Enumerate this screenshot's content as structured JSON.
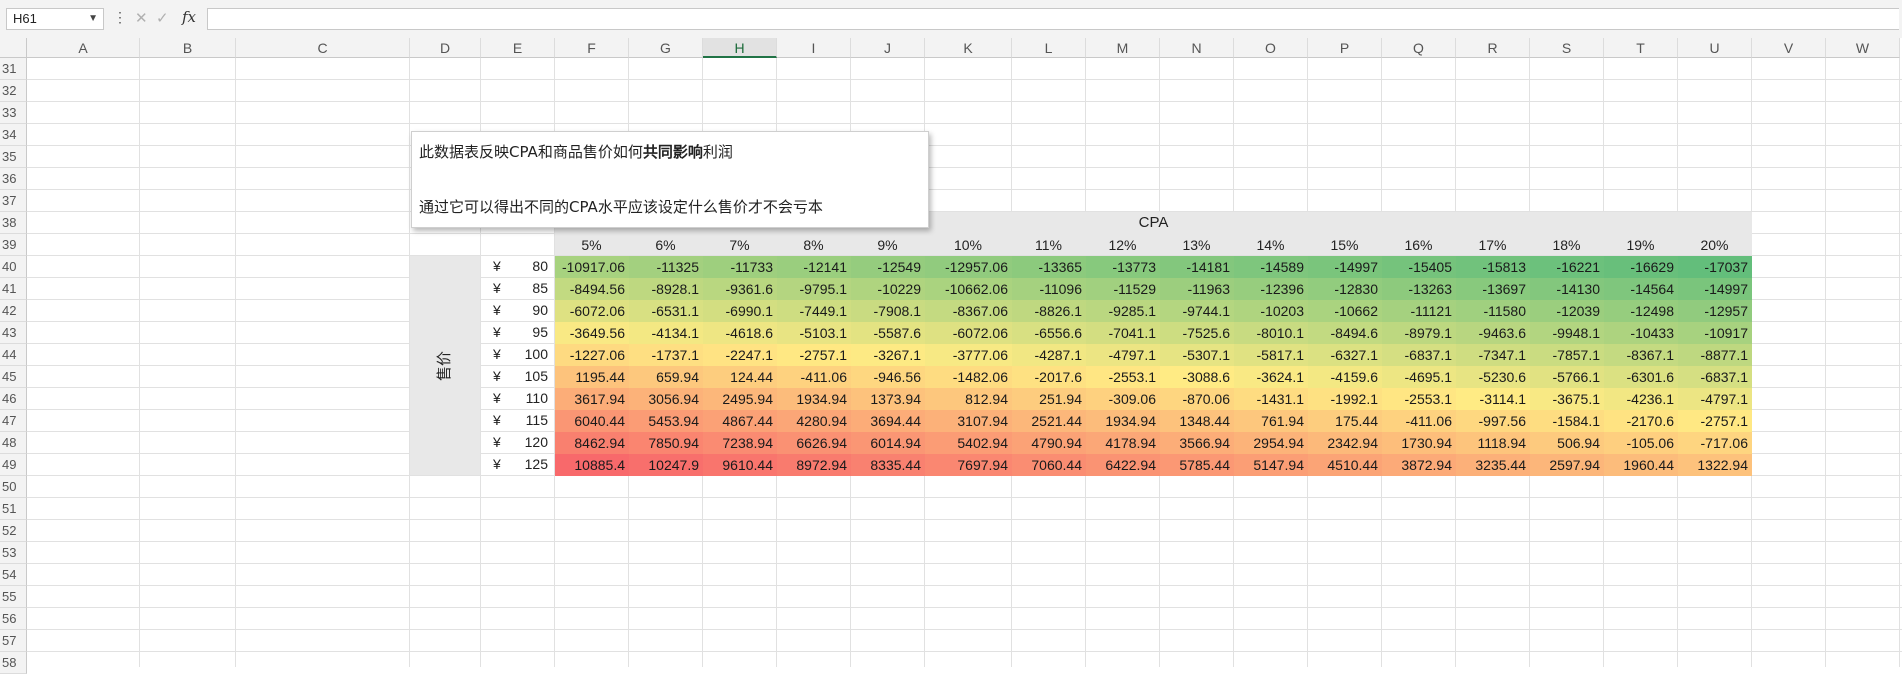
{
  "formula_bar": {
    "name_box": "H61",
    "dots_label": "⋮",
    "cancel_icon": "close-icon",
    "enter_icon": "check-icon",
    "fx_label": "fx",
    "formula_value": ""
  },
  "columns": [
    "A",
    "B",
    "C",
    "D",
    "E",
    "F",
    "G",
    "H",
    "I",
    "J",
    "K",
    "L",
    "M",
    "N",
    "O",
    "P",
    "Q",
    "R",
    "S",
    "T",
    "U",
    "V",
    "W"
  ],
  "selected_column": "H",
  "rows": [
    "31",
    "32",
    "33",
    "34",
    "35",
    "36",
    "37",
    "38",
    "39",
    "40",
    "41",
    "42",
    "43",
    "44",
    "45",
    "46",
    "47",
    "48",
    "49",
    "50",
    "51",
    "52",
    "53",
    "54",
    "55",
    "56",
    "57",
    "58"
  ],
  "note": {
    "line1_pre": "此数据表反映CPA和商品售价如何",
    "line1_bold": "共同影响",
    "line1_post": "利润",
    "line2": "通过它可以得出不同的CPA水平应该设定什么售价才不会亏本"
  },
  "table": {
    "cpa_label": "CPA",
    "price_label": "售价",
    "currency": "¥",
    "cpa_headers": [
      "5%",
      "6%",
      "7%",
      "8%",
      "9%",
      "10%",
      "11%",
      "12%",
      "13%",
      "14%",
      "15%",
      "16%",
      "17%",
      "18%",
      "19%",
      "20%"
    ],
    "prices": [
      "80",
      "85",
      "90",
      "95",
      "100",
      "105",
      "110",
      "115",
      "120",
      "125"
    ],
    "values": [
      [
        "-10917.06",
        "-11325",
        "-11733",
        "-12141",
        "-12549",
        "-12957.06",
        "-13365",
        "-13773",
        "-14181",
        "-14589",
        "-14997",
        "-15405",
        "-15813",
        "-16221",
        "-16629",
        "-17037"
      ],
      [
        "-8494.56",
        "-8928.1",
        "-9361.6",
        "-9795.1",
        "-10229",
        "-10662.06",
        "-11096",
        "-11529",
        "-11963",
        "-12396",
        "-12830",
        "-13263",
        "-13697",
        "-14130",
        "-14564",
        "-14997"
      ],
      [
        "-6072.06",
        "-6531.1",
        "-6990.1",
        "-7449.1",
        "-7908.1",
        "-8367.06",
        "-8826.1",
        "-9285.1",
        "-9744.1",
        "-10203",
        "-10662",
        "-11121",
        "-11580",
        "-12039",
        "-12498",
        "-12957"
      ],
      [
        "-3649.56",
        "-4134.1",
        "-4618.6",
        "-5103.1",
        "-5587.6",
        "-6072.06",
        "-6556.6",
        "-7041.1",
        "-7525.6",
        "-8010.1",
        "-8494.6",
        "-8979.1",
        "-9463.6",
        "-9948.1",
        "-10433",
        "-10917"
      ],
      [
        "-1227.06",
        "-1737.1",
        "-2247.1",
        "-2757.1",
        "-3267.1",
        "-3777.06",
        "-4287.1",
        "-4797.1",
        "-5307.1",
        "-5817.1",
        "-6327.1",
        "-6837.1",
        "-7347.1",
        "-7857.1",
        "-8367.1",
        "-8877.1"
      ],
      [
        "1195.44",
        "659.94",
        "124.44",
        "-411.06",
        "-946.56",
        "-1482.06",
        "-2017.6",
        "-2553.1",
        "-3088.6",
        "-3624.1",
        "-4159.6",
        "-4695.1",
        "-5230.6",
        "-5766.1",
        "-6301.6",
        "-6837.1"
      ],
      [
        "3617.94",
        "3056.94",
        "2495.94",
        "1934.94",
        "1373.94",
        "812.94",
        "251.94",
        "-309.06",
        "-870.06",
        "-1431.1",
        "-1992.1",
        "-2553.1",
        "-3114.1",
        "-3675.1",
        "-4236.1",
        "-4797.1"
      ],
      [
        "6040.44",
        "5453.94",
        "4867.44",
        "4280.94",
        "3694.44",
        "3107.94",
        "2521.44",
        "1934.94",
        "1348.44",
        "761.94",
        "175.44",
        "-411.06",
        "-997.56",
        "-1584.1",
        "-2170.6",
        "-2757.1"
      ],
      [
        "8462.94",
        "7850.94",
        "7238.94",
        "6626.94",
        "6014.94",
        "5402.94",
        "4790.94",
        "4178.94",
        "3566.94",
        "2954.94",
        "2342.94",
        "1730.94",
        "1118.94",
        "506.94",
        "-105.06",
        "-717.06"
      ],
      [
        "10885.4",
        "10247.9",
        "9610.44",
        "8972.94",
        "8335.44",
        "7697.94",
        "7060.44",
        "6422.94",
        "5785.44",
        "5147.94",
        "4510.44",
        "3872.94",
        "3235.44",
        "2597.94",
        "1960.44",
        "1322.94"
      ]
    ],
    "scale_colors": {
      "min": "#63be7b",
      "mid": "#ffeb84",
      "max": "#f8696b"
    }
  }
}
